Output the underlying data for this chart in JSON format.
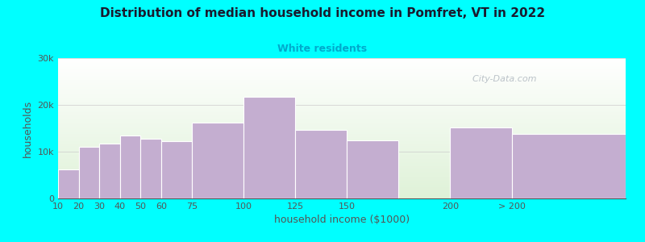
{
  "title": "Distribution of median household income in Pomfret, VT in 2022",
  "subtitle": "White residents",
  "xlabel": "household income ($1000)",
  "ylabel": "households",
  "background_color": "#00FFFF",
  "plot_bg_top": "#dff2d8",
  "plot_bg_bottom": "#ffffff",
  "bar_color": "#C4AED0",
  "bar_edge_color": "#ffffff",
  "title_color": "#1a1a2e",
  "subtitle_color": "#00AACC",
  "axis_color": "#555555",
  "categories": [
    "10",
    "20",
    "30",
    "40",
    "50",
    "60",
    "75",
    "100",
    "125",
    "150",
    "200",
    "> 200"
  ],
  "values": [
    6200,
    11000,
    11800,
    13500,
    12700,
    12200,
    16200,
    21800,
    14700,
    12500,
    15200,
    13800
  ],
  "positions": [
    10,
    20,
    30,
    40,
    50,
    60,
    75,
    100,
    125,
    150,
    200,
    230
  ],
  "widths": [
    10,
    10,
    10,
    10,
    10,
    15,
    25,
    25,
    25,
    25,
    30,
    55
  ],
  "ylim": [
    0,
    30000
  ],
  "yticks": [
    0,
    10000,
    20000,
    30000
  ],
  "ytick_labels": [
    "0",
    "10k",
    "20k",
    "30k"
  ],
  "grid_color": "#cccccc",
  "watermark": "  City-Data.com"
}
